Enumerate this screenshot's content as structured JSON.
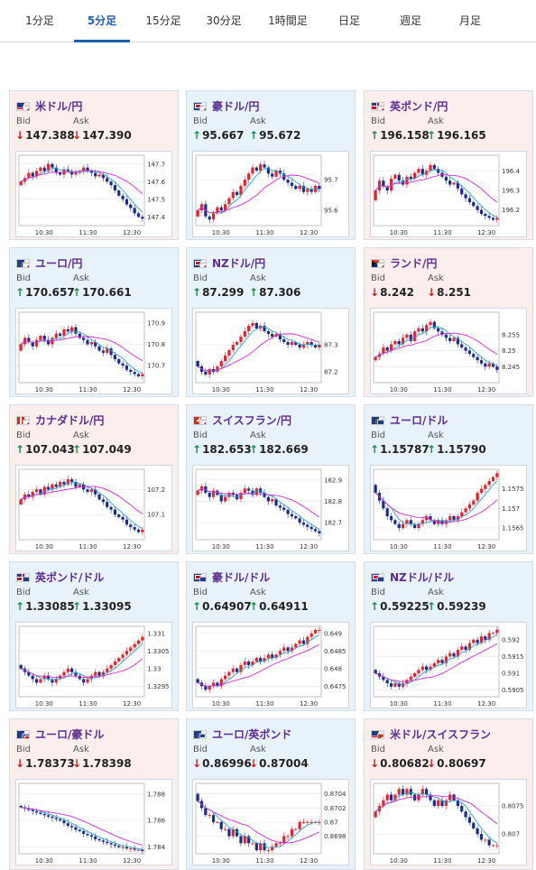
{
  "tabs": [
    {
      "label": "1分足",
      "active": false
    },
    {
      "label": "5分足",
      "active": true
    },
    {
      "label": "15分足",
      "active": false
    },
    {
      "label": "30分足",
      "active": false
    },
    {
      "label": "1時間足",
      "active": false
    },
    {
      "label": "日足",
      "active": false
    },
    {
      "label": "週足",
      "active": false
    },
    {
      "label": "月足",
      "active": false
    }
  ],
  "bid_label": "Bid",
  "ask_label": "Ask",
  "colors": {
    "up": "#1a8f4a",
    "down": "#c81e1e",
    "candle_up": "#e0262f",
    "candle_down": "#1b2c8a",
    "ma_short": "#2aa1c7",
    "ma_long": "#d12bd1",
    "accent": "#1f5fb4",
    "pink_bg": "#fdeeee",
    "blue_bg": "#e8f2fb"
  },
  "cards": [
    {
      "pair": "米ドル/円",
      "flag": "us-flag",
      "theme": "pink",
      "bid": "147.388",
      "ask": "147.390",
      "bid_dir": "down",
      "ask_dir": "down",
      "chart": {
        "yticks": [
          "147.7",
          "147.6",
          "147.5",
          "147.4"
        ],
        "xticks": [
          "10:30",
          "11:30",
          "12:30"
        ],
        "ylim": [
          147.35,
          147.75
        ],
        "closes": [
          147.6,
          147.62,
          147.65,
          147.63,
          147.66,
          147.68,
          147.66,
          147.7,
          147.68,
          147.65,
          147.64,
          147.67,
          147.66,
          147.64,
          147.65,
          147.66,
          147.68,
          147.66,
          147.65,
          147.63,
          147.64,
          147.62,
          147.6,
          147.58,
          147.55,
          147.52,
          147.5,
          147.47,
          147.45,
          147.42,
          147.4,
          147.39
        ]
      }
    },
    {
      "pair": "豪ドル/円",
      "flag": "au-flag",
      "theme": "blue",
      "bid": "95.667",
      "ask": "95.672",
      "bid_dir": "up",
      "ask_dir": "up",
      "chart": {
        "yticks": [
          "95.7",
          "95.6"
        ],
        "xticks": [
          "10:30",
          "11:30",
          "12:30"
        ],
        "ylim": [
          95.55,
          95.78
        ],
        "closes": [
          95.6,
          95.62,
          95.58,
          95.57,
          95.59,
          95.61,
          95.6,
          95.62,
          95.64,
          95.66,
          95.65,
          95.68,
          95.7,
          95.72,
          95.74,
          95.73,
          95.75,
          95.74,
          95.72,
          95.71,
          95.73,
          95.72,
          95.7,
          95.69,
          95.68,
          95.67,
          95.68,
          95.66,
          95.67,
          95.66,
          95.68,
          95.67
        ]
      }
    },
    {
      "pair": "英ポンド/円",
      "flag": "gb-flag",
      "theme": "pink",
      "bid": "196.158",
      "ask": "196.165",
      "bid_dir": "up",
      "ask_dir": "up",
      "chart": {
        "yticks": [
          "196.4",
          "196.3",
          "196.2"
        ],
        "xticks": [
          "10:30",
          "11:30",
          "12:30"
        ],
        "ylim": [
          196.12,
          196.48
        ],
        "closes": [
          196.3,
          196.35,
          196.32,
          196.3,
          196.36,
          196.38,
          196.35,
          196.33,
          196.37,
          196.36,
          196.39,
          196.41,
          196.38,
          196.4,
          196.43,
          196.41,
          196.39,
          196.37,
          196.35,
          196.33,
          196.34,
          196.31,
          196.28,
          196.26,
          196.24,
          196.22,
          196.2,
          196.18,
          196.17,
          196.16,
          196.15,
          196.16
        ]
      }
    },
    {
      "pair": "ユーロ/円",
      "flag": "eu-flag",
      "theme": "blue",
      "bid": "170.657",
      "ask": "170.661",
      "bid_dir": "up",
      "ask_dir": "up",
      "chart": {
        "yticks": [
          "170.9",
          "170.8",
          "170.7"
        ],
        "xticks": [
          "10:30",
          "11:30",
          "12:30"
        ],
        "ylim": [
          170.62,
          170.95
        ],
        "closes": [
          170.8,
          170.83,
          170.81,
          170.79,
          170.82,
          170.84,
          170.82,
          170.8,
          170.83,
          170.85,
          170.84,
          170.87,
          170.86,
          170.88,
          170.85,
          170.83,
          170.82,
          170.8,
          170.81,
          170.79,
          170.77,
          170.76,
          170.78,
          170.75,
          170.73,
          170.71,
          170.7,
          170.68,
          170.67,
          170.66,
          170.65,
          170.66
        ]
      }
    },
    {
      "pair": "NZドル/円",
      "flag": "nz-flag",
      "theme": "blue",
      "bid": "87.299",
      "ask": "87.306",
      "bid_dir": "up",
      "ask_dir": "up",
      "chart": {
        "yticks": [
          "87.3",
          "87.2"
        ],
        "xticks": [
          "10:30",
          "11:30",
          "12:30"
        ],
        "ylim": [
          87.16,
          87.42
        ],
        "closes": [
          87.22,
          87.2,
          87.19,
          87.21,
          87.2,
          87.22,
          87.24,
          87.26,
          87.28,
          87.3,
          87.31,
          87.33,
          87.35,
          87.37,
          87.38,
          87.36,
          87.37,
          87.35,
          87.34,
          87.33,
          87.34,
          87.32,
          87.31,
          87.3,
          87.31,
          87.3,
          87.29,
          87.3,
          87.31,
          87.3,
          87.29,
          87.3
        ]
      }
    },
    {
      "pair": "ランド/円",
      "flag": "za-flag",
      "theme": "pink",
      "bid": "8.242",
      "ask": "8.251",
      "bid_dir": "down",
      "ask_dir": "down",
      "chart": {
        "yticks": [
          "8.255",
          "8.25",
          "8.245"
        ],
        "xticks": [
          "10:30",
          "11:30",
          "12:30"
        ],
        "ylim": [
          8.24,
          8.262
        ],
        "closes": [
          8.248,
          8.249,
          8.251,
          8.25,
          8.252,
          8.253,
          8.252,
          8.254,
          8.255,
          8.253,
          8.256,
          8.257,
          8.256,
          8.258,
          8.259,
          8.257,
          8.256,
          8.255,
          8.254,
          8.253,
          8.254,
          8.252,
          8.251,
          8.25,
          8.249,
          8.248,
          8.247,
          8.246,
          8.245,
          8.246,
          8.245,
          8.244
        ]
      }
    },
    {
      "pair": "カナダドル/円",
      "flag": "ca-flag",
      "theme": "pink",
      "bid": "107.043",
      "ask": "107.049",
      "bid_dir": "up",
      "ask_dir": "up",
      "chart": {
        "yticks": [
          "107.2",
          "107.1"
        ],
        "xticks": [
          "10:30",
          "11:30",
          "12:30"
        ],
        "ylim": [
          107.0,
          107.28
        ],
        "closes": [
          107.16,
          107.18,
          107.17,
          107.19,
          107.2,
          107.18,
          107.21,
          107.2,
          107.22,
          107.21,
          107.23,
          107.22,
          107.24,
          107.23,
          107.21,
          107.22,
          107.2,
          107.19,
          107.2,
          107.18,
          107.16,
          107.15,
          107.13,
          107.12,
          107.1,
          107.09,
          107.08,
          107.06,
          107.05,
          107.04,
          107.03,
          107.04
        ]
      }
    },
    {
      "pair": "スイスフラン/円",
      "flag": "ch-flag",
      "theme": "blue",
      "bid": "182.653",
      "ask": "182.669",
      "bid_dir": "up",
      "ask_dir": "up",
      "chart": {
        "yticks": [
          "182.9",
          "182.8",
          "182.7"
        ],
        "xticks": [
          "10:30",
          "11:30",
          "12:30"
        ],
        "ylim": [
          182.62,
          182.95
        ],
        "closes": [
          182.85,
          182.87,
          182.84,
          182.82,
          182.85,
          182.83,
          182.8,
          182.82,
          182.84,
          182.83,
          182.81,
          182.84,
          182.86,
          182.85,
          182.83,
          182.86,
          182.84,
          182.82,
          182.8,
          182.81,
          182.78,
          182.77,
          182.76,
          182.74,
          182.73,
          182.72,
          182.7,
          182.69,
          182.68,
          182.67,
          182.66,
          182.65
        ]
      }
    },
    {
      "pair": "ユーロ/ドル",
      "flag": "euus-flag",
      "theme": "blue",
      "bid": "1.15787",
      "ask": "1.15790",
      "bid_dir": "up",
      "ask_dir": "up",
      "chart": {
        "yticks": [
          "1.1575",
          "1.157",
          "1.1565"
        ],
        "xticks": [
          "10:30",
          "11:30",
          "12:30"
        ],
        "ylim": [
          1.1562,
          1.158
        ],
        "closes": [
          1.1574,
          1.1572,
          1.157,
          1.1568,
          1.1567,
          1.1566,
          1.1565,
          1.1566,
          1.1567,
          1.1566,
          1.1565,
          1.1566,
          1.1567,
          1.1568,
          1.1567,
          1.1566,
          1.1567,
          1.1566,
          1.1567,
          1.1568,
          1.1567,
          1.1568,
          1.1569,
          1.157,
          1.1571,
          1.1572,
          1.1574,
          1.1575,
          1.1576,
          1.1577,
          1.1578,
          1.1579
        ]
      }
    },
    {
      "pair": "英ポンド/ドル",
      "flag": "gbus-flag",
      "theme": "blue",
      "bid": "1.33085",
      "ask": "1.33095",
      "bid_dir": "up",
      "ask_dir": "up",
      "chart": {
        "yticks": [
          "1.331",
          "1.3305",
          "1.33",
          "1.3295"
        ],
        "xticks": [
          "10:30",
          "11:30",
          "12:30"
        ],
        "ylim": [
          1.3292,
          1.3312
        ],
        "closes": [
          1.33,
          1.3299,
          1.3298,
          1.3297,
          1.3296,
          1.3297,
          1.3298,
          1.3297,
          1.3296,
          1.3297,
          1.3298,
          1.3299,
          1.33,
          1.3299,
          1.3298,
          1.3297,
          1.3296,
          1.3297,
          1.3298,
          1.3299,
          1.3298,
          1.3299,
          1.33,
          1.3301,
          1.3302,
          1.3303,
          1.3304,
          1.3305,
          1.3306,
          1.3307,
          1.3308,
          1.3309
        ]
      }
    },
    {
      "pair": "豪ドル/ドル",
      "flag": "auus-flag",
      "theme": "blue",
      "bid": "0.64907",
      "ask": "0.64911",
      "bid_dir": "up",
      "ask_dir": "up",
      "chart": {
        "yticks": [
          "0.649",
          "0.6485",
          "0.648",
          "0.6475"
        ],
        "xticks": [
          "10:30",
          "11:30",
          "12:30"
        ],
        "ylim": [
          0.6472,
          0.6492
        ],
        "closes": [
          0.6476,
          0.6475,
          0.6474,
          0.6475,
          0.6476,
          0.6475,
          0.6477,
          0.6478,
          0.6479,
          0.648,
          0.6479,
          0.6481,
          0.6482,
          0.6481,
          0.6482,
          0.6483,
          0.6482,
          0.6483,
          0.6484,
          0.6483,
          0.6484,
          0.6485,
          0.6486,
          0.6485,
          0.6486,
          0.6487,
          0.6488,
          0.6487,
          0.6489,
          0.649,
          0.6491,
          0.6491
        ]
      }
    },
    {
      "pair": "NZドル/ドル",
      "flag": "nzus-flag",
      "theme": "blue",
      "bid": "0.59225",
      "ask": "0.59239",
      "bid_dir": "up",
      "ask_dir": "up",
      "chart": {
        "yticks": [
          "0.592",
          "0.5915",
          "0.591",
          "0.5905"
        ],
        "xticks": [
          "10:30",
          "11:30",
          "12:30"
        ],
        "ylim": [
          0.5903,
          0.5924
        ],
        "closes": [
          0.591,
          0.5909,
          0.5908,
          0.5907,
          0.5906,
          0.5907,
          0.5906,
          0.5907,
          0.5908,
          0.5909,
          0.591,
          0.5911,
          0.5912,
          0.5911,
          0.5912,
          0.5913,
          0.5914,
          0.5913,
          0.5915,
          0.5916,
          0.5915,
          0.5917,
          0.5918,
          0.5917,
          0.5919,
          0.592,
          0.5919,
          0.5921,
          0.592,
          0.5922,
          0.5922,
          0.5923
        ]
      }
    },
    {
      "pair": "ユーロ/豪ドル",
      "flag": "euau-flag",
      "theme": "pink",
      "bid": "1.78373",
      "ask": "1.78398",
      "bid_dir": "down",
      "ask_dir": "down",
      "chart": {
        "yticks": [
          "1.788",
          "1.786",
          "1.784"
        ],
        "xticks": [
          "10:30",
          "11:30",
          "12:30"
        ],
        "ylim": [
          1.7835,
          1.7888
        ],
        "closes": [
          1.787,
          1.7869,
          1.7868,
          1.7867,
          1.7866,
          1.7865,
          1.7864,
          1.7863,
          1.7862,
          1.7861,
          1.786,
          1.7858,
          1.7856,
          1.7855,
          1.7853,
          1.7852,
          1.785,
          1.7849,
          1.7848,
          1.7846,
          1.7845,
          1.7844,
          1.7843,
          1.7842,
          1.7841,
          1.784,
          1.784,
          1.7839,
          1.7839,
          1.7838,
          1.7838,
          1.7837
        ]
      }
    },
    {
      "pair": "ユーロ/英ポンド",
      "flag": "eugb-flag",
      "theme": "blue",
      "bid": "0.86996",
      "ask": "0.87004",
      "bid_dir": "down",
      "ask_dir": "down",
      "chart": {
        "yticks": [
          "0.8704",
          "0.8702",
          "0.87",
          "0.8698"
        ],
        "xticks": [
          "10:30",
          "11:30",
          "12:30"
        ],
        "ylim": [
          0.86955,
          0.87055
        ],
        "closes": [
          0.8703,
          0.8702,
          0.8701,
          0.8701,
          0.87,
          0.87,
          0.8699,
          0.8699,
          0.8698,
          0.8699,
          0.8698,
          0.8697,
          0.8698,
          0.8697,
          0.8697,
          0.8696,
          0.8697,
          0.8696,
          0.8696,
          0.86965,
          0.8697,
          0.8697,
          0.8698,
          0.8698,
          0.8699,
          0.8699,
          0.87,
          0.87,
          0.87,
          0.87,
          0.87,
          0.87
        ]
      }
    },
    {
      "pair": "米ドル/スイスフラン",
      "flag": "usch-flag",
      "theme": "pink",
      "bid": "0.80682",
      "ask": "0.80697",
      "bid_dir": "down",
      "ask_dir": "down",
      "chart": {
        "yticks": [
          "0.8075",
          "0.807"
        ],
        "xticks": [
          "10:30",
          "11:30",
          "12:30"
        ],
        "ylim": [
          0.80665,
          0.8079
        ],
        "closes": [
          0.8074,
          0.8075,
          0.8076,
          0.8077,
          0.8076,
          0.8077,
          0.8078,
          0.8077,
          0.8078,
          0.8077,
          0.8076,
          0.8077,
          0.8078,
          0.8077,
          0.8076,
          0.8075,
          0.8076,
          0.8075,
          0.8076,
          0.8077,
          0.8076,
          0.8075,
          0.8074,
          0.8073,
          0.8072,
          0.8071,
          0.807,
          0.8069,
          0.8069,
          0.8068,
          0.8068,
          0.8068
        ]
      }
    }
  ]
}
